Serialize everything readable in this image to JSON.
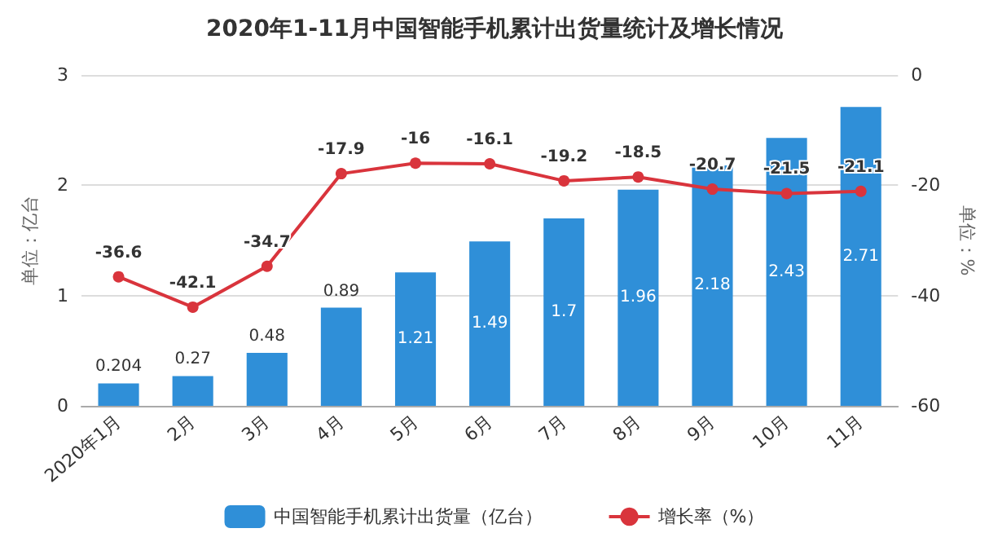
{
  "chart_data": {
    "type": "bar",
    "title": "2020年1-11月中国智能手机累计出货量统计及增长情况",
    "ylabel": "单位：亿台",
    "y2label": "单位：%",
    "categories": [
      "2020年1月",
      "2月",
      "3月",
      "4月",
      "5月",
      "6月",
      "7月",
      "8月",
      "9月",
      "10月",
      "11月"
    ],
    "series": [
      {
        "name": "中国智能手机累计出货量（亿台）",
        "color": "#2f8fd8",
        "values": [
          0.204,
          0.27,
          0.48,
          0.89,
          1.21,
          1.49,
          1.7,
          1.96,
          2.18,
          2.43,
          2.71
        ]
      },
      {
        "name": "增长率（%）",
        "type": "line",
        "axis": "y2",
        "color": "#d9343c",
        "values": [
          -36.6,
          -42.1,
          -34.7,
          -17.9,
          -16,
          -16.1,
          -19.2,
          -18.5,
          -20.7,
          -21.5,
          -21.1
        ]
      }
    ],
    "ylim": [
      0,
      3
    ],
    "yticks": [
      0,
      1,
      2,
      3
    ],
    "y2lim": [
      -60,
      0
    ],
    "y2ticks": [
      -60,
      -40,
      -20,
      0
    ],
    "grid": "y",
    "legend": "bottom",
    "marker": "circle",
    "data_labels": true
  }
}
